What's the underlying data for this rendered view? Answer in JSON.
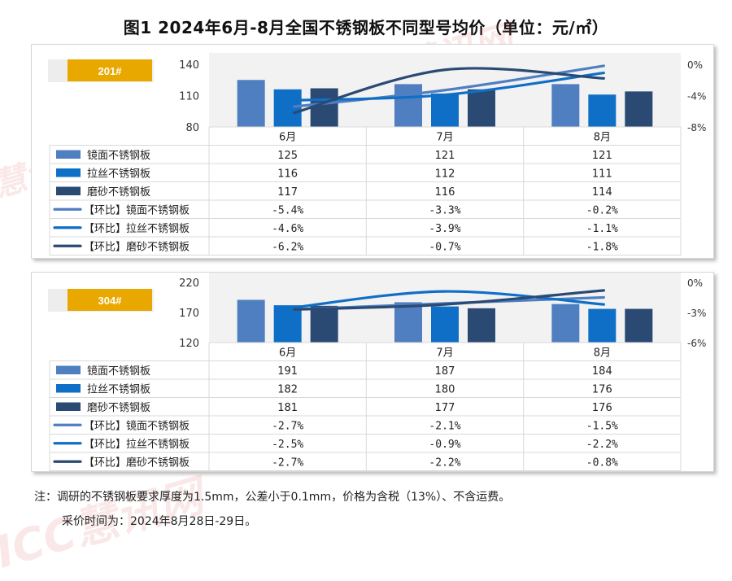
{
  "title": "图1  2024年6月-8月全国不锈钢板不同型号均价（单位：元/㎡）",
  "watermarks": [
    "ICC慧讯网",
    "慧讯网",
    "ICC慧讯网",
    "ICC慧讯网"
  ],
  "notes": [
    "注：调研的不锈钢板要求厚度为1.5mm，公差小于0.1mm，价格为含税（13%）、不含运费。",
    "采价时间为：2024年8月28日-29日。"
  ],
  "colors": {
    "mirror": "#4f7fc1",
    "brushed": "#0f6fc6",
    "sanded": "#2a4a73",
    "badge": "#e8a800",
    "plot_bg": "#f2f2f2",
    "grid": "#d9d9d9"
  },
  "chart_data": [
    {
      "type": "bar",
      "badge": "201#",
      "categories": [
        "6月",
        "7月",
        "8月"
      ],
      "y_left_ticks": [
        "140",
        "110",
        "80"
      ],
      "y_left_range": [
        80,
        140
      ],
      "y_right_ticks": [
        "0%",
        "-4%",
        "-8%"
      ],
      "y_right_range": [
        -8,
        0
      ],
      "bar_series": [
        {
          "name": "镜面不锈钢板",
          "values": [
            125,
            121,
            121
          ],
          "labels": [
            "125",
            "121",
            "121"
          ]
        },
        {
          "name": "拉丝不锈钢板",
          "values": [
            116,
            112,
            111
          ],
          "labels": [
            "116",
            "112",
            "111"
          ]
        },
        {
          "name": "磨砂不锈钢板",
          "values": [
            117,
            116,
            114
          ],
          "labels": [
            "117",
            "116",
            "114"
          ]
        }
      ],
      "line_series": [
        {
          "name": "【环比】镜面不锈钢板",
          "values": [
            -5.4,
            -3.3,
            -0.2
          ],
          "labels": [
            "-5.4%",
            "-3.3%",
            "-0.2%"
          ]
        },
        {
          "name": "【环比】拉丝不锈钢板",
          "values": [
            -4.6,
            -3.9,
            -1.1
          ],
          "labels": [
            "-4.6%",
            "-3.9%",
            "-1.1%"
          ]
        },
        {
          "name": "【环比】磨砂不锈钢板",
          "values": [
            -6.2,
            -0.7,
            -1.8
          ],
          "labels": [
            "-6.2%",
            "-0.7%",
            "-1.8%"
          ]
        }
      ]
    },
    {
      "type": "bar",
      "badge": "304#",
      "categories": [
        "6月",
        "7月",
        "8月"
      ],
      "y_left_ticks": [
        "220",
        "170",
        "120"
      ],
      "y_left_range": [
        120,
        220
      ],
      "y_right_ticks": [
        "0%",
        "-3%",
        "-6%"
      ],
      "y_right_range": [
        -6,
        0
      ],
      "bar_series": [
        {
          "name": "镜面不锈钢板",
          "values": [
            191,
            187,
            184
          ],
          "labels": [
            "191",
            "187",
            "184"
          ]
        },
        {
          "name": "拉丝不锈钢板",
          "values": [
            182,
            180,
            176
          ],
          "labels": [
            "182",
            "180",
            "176"
          ]
        },
        {
          "name": "磨砂不锈钢板",
          "values": [
            181,
            177,
            176
          ],
          "labels": [
            "181",
            "177",
            "176"
          ]
        }
      ],
      "line_series": [
        {
          "name": "【环比】镜面不锈钢板",
          "values": [
            -2.7,
            -2.1,
            -1.5
          ],
          "labels": [
            "-2.7%",
            "-2.1%",
            "-1.5%"
          ]
        },
        {
          "name": "【环比】拉丝不锈钢板",
          "values": [
            -2.5,
            -0.9,
            -2.2
          ],
          "labels": [
            "-2.5%",
            "-0.9%",
            "-2.2%"
          ]
        },
        {
          "name": "【环比】磨砂不锈钢板",
          "values": [
            -2.7,
            -2.2,
            -0.8
          ],
          "labels": [
            "-2.7%",
            "-2.2%",
            "-0.8%"
          ]
        }
      ]
    }
  ]
}
